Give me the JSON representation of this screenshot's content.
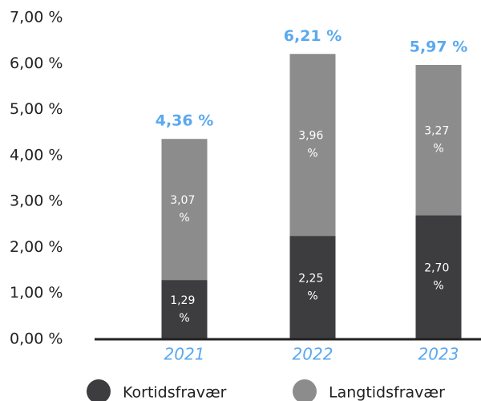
{
  "chart_data": {
    "type": "bar",
    "stacked": true,
    "categories": [
      "2021",
      "2022",
      "2023"
    ],
    "series": [
      {
        "name": "Kortidsfravær",
        "color": "#3d3d3f",
        "values": [
          1.29,
          2.25,
          2.7
        ],
        "value_labels": [
          "1,29 %",
          "2,25 %",
          "2,70 %"
        ]
      },
      {
        "name": "Langtidsfravær",
        "color": "#8c8c8c",
        "values": [
          3.07,
          3.96,
          3.27
        ],
        "value_labels": [
          "3,07 %",
          "3,96 %",
          "3,27 %"
        ]
      }
    ],
    "totals": [
      4.36,
      6.21,
      5.97
    ],
    "total_labels": [
      "4,36 %",
      "6,21 %",
      "5,97 %"
    ],
    "ylim": [
      0,
      7
    ],
    "yticks": [
      {
        "value": 0,
        "label": "0,00 %"
      },
      {
        "value": 1,
        "label": "1,00 %"
      },
      {
        "value": 2,
        "label": "2,00 %"
      },
      {
        "value": 3,
        "label": "3,00 %"
      },
      {
        "value": 4,
        "label": "4,00 %"
      },
      {
        "value": 5,
        "label": "5,00 %"
      },
      {
        "value": 6,
        "label": "6,00 %"
      },
      {
        "value": 7,
        "label": "7,00 %"
      }
    ],
    "grid": false
  }
}
